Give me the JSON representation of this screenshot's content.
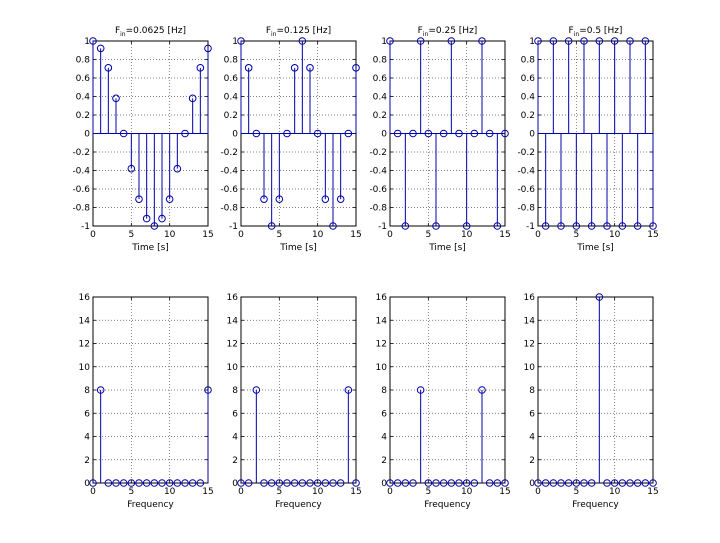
{
  "figure": {
    "stem_color": "#0000aa",
    "grid_color": "#555555",
    "axis_color": "#000000"
  },
  "chart_data": [
    {
      "type": "stem",
      "title": {
        "main": "F",
        "sub": "in",
        "rest": "=0.0625 [Hz]"
      },
      "xlabel": "Time [s]",
      "xlim": [
        0,
        15
      ],
      "ylim": [
        -1,
        1
      ],
      "xticks": [
        "0",
        "5",
        "10",
        "15"
      ],
      "yticks": [
        "-1",
        "-0.8",
        "-0.6",
        "-0.4",
        "-0.2",
        "0",
        "0.2",
        "0.4",
        "0.6",
        "0.8",
        "1"
      ],
      "grid": true,
      "x": [
        0,
        1,
        2,
        3,
        4,
        5,
        6,
        7,
        8,
        9,
        10,
        11,
        12,
        13,
        14,
        15
      ],
      "values": [
        1,
        0.92,
        0.71,
        0.38,
        0,
        -0.38,
        -0.71,
        -0.92,
        -1,
        -0.92,
        -0.71,
        -0.38,
        0,
        0.38,
        0.71,
        0.92
      ]
    },
    {
      "type": "stem",
      "title": {
        "main": "F",
        "sub": "in",
        "rest": "=0.125 [Hz]"
      },
      "xlabel": "Time [s]",
      "xlim": [
        0,
        15
      ],
      "ylim": [
        -1,
        1
      ],
      "xticks": [
        "0",
        "5",
        "10",
        "15"
      ],
      "yticks": [
        "-1",
        "-0.8",
        "-0.6",
        "-0.4",
        "-0.2",
        "0",
        "0.2",
        "0.4",
        "0.6",
        "0.8",
        "1"
      ],
      "grid": true,
      "x": [
        0,
        1,
        2,
        3,
        4,
        5,
        6,
        7,
        8,
        9,
        10,
        11,
        12,
        13,
        14,
        15
      ],
      "values": [
        1,
        0.71,
        0,
        -0.71,
        -1,
        -0.71,
        0,
        0.71,
        1,
        0.71,
        0,
        -0.71,
        -1,
        -0.71,
        0,
        0.71
      ]
    },
    {
      "type": "stem",
      "title": {
        "main": "F",
        "sub": "in",
        "rest": "=0.25 [Hz]"
      },
      "xlabel": "Time [s]",
      "xlim": [
        0,
        15
      ],
      "ylim": [
        -1,
        1
      ],
      "xticks": [
        "0",
        "5",
        "10",
        "15"
      ],
      "yticks": [
        "-1",
        "-0.8",
        "-0.6",
        "-0.4",
        "-0.2",
        "0",
        "0.2",
        "0.4",
        "0.6",
        "0.8",
        "1"
      ],
      "grid": true,
      "x": [
        0,
        1,
        2,
        3,
        4,
        5,
        6,
        7,
        8,
        9,
        10,
        11,
        12,
        13,
        14,
        15
      ],
      "values": [
        1,
        0,
        -1,
        0,
        1,
        0,
        -1,
        0,
        1,
        0,
        -1,
        0,
        1,
        0,
        -1,
        0
      ]
    },
    {
      "type": "stem",
      "title": {
        "main": "F",
        "sub": "in",
        "rest": "=0.5 [Hz]"
      },
      "xlabel": "Time [s]",
      "xlim": [
        0,
        15
      ],
      "ylim": [
        -1,
        1
      ],
      "xticks": [
        "0",
        "5",
        "10",
        "15"
      ],
      "yticks": [
        "-1",
        "-0.8",
        "-0.6",
        "-0.4",
        "-0.2",
        "0",
        "0.2",
        "0.4",
        "0.6",
        "0.8",
        "1"
      ],
      "grid": true,
      "x": [
        0,
        1,
        2,
        3,
        4,
        5,
        6,
        7,
        8,
        9,
        10,
        11,
        12,
        13,
        14,
        15
      ],
      "values": [
        1,
        -1,
        1,
        -1,
        1,
        -1,
        1,
        -1,
        1,
        -1,
        1,
        -1,
        1,
        -1,
        1,
        -1
      ]
    },
    {
      "type": "stem",
      "xlabel": "Frequency",
      "xlim": [
        0,
        15
      ],
      "ylim": [
        0,
        16
      ],
      "xticks": [
        "0",
        "5",
        "10",
        "15"
      ],
      "yticks": [
        "0",
        "2",
        "4",
        "6",
        "8",
        "10",
        "12",
        "14",
        "16"
      ],
      "grid": true,
      "x": [
        0,
        1,
        2,
        3,
        4,
        5,
        6,
        7,
        8,
        9,
        10,
        11,
        12,
        13,
        14,
        15
      ],
      "values": [
        0,
        8,
        0,
        0,
        0,
        0,
        0,
        0,
        0,
        0,
        0,
        0,
        0,
        0,
        0,
        8
      ]
    },
    {
      "type": "stem",
      "xlabel": "Frequency",
      "xlim": [
        0,
        15
      ],
      "ylim": [
        0,
        16
      ],
      "xticks": [
        "0",
        "5",
        "10",
        "15"
      ],
      "yticks": [
        "0",
        "2",
        "4",
        "6",
        "8",
        "10",
        "12",
        "14",
        "16"
      ],
      "grid": true,
      "x": [
        0,
        1,
        2,
        3,
        4,
        5,
        6,
        7,
        8,
        9,
        10,
        11,
        12,
        13,
        14,
        15
      ],
      "values": [
        0,
        0,
        8,
        0,
        0,
        0,
        0,
        0,
        0,
        0,
        0,
        0,
        0,
        0,
        8,
        0
      ]
    },
    {
      "type": "stem",
      "xlabel": "Frequency",
      "xlim": [
        0,
        15
      ],
      "ylim": [
        0,
        16
      ],
      "xticks": [
        "0",
        "5",
        "10",
        "15"
      ],
      "yticks": [
        "0",
        "2",
        "4",
        "6",
        "8",
        "10",
        "12",
        "14",
        "16"
      ],
      "grid": true,
      "x": [
        0,
        1,
        2,
        3,
        4,
        5,
        6,
        7,
        8,
        9,
        10,
        11,
        12,
        13,
        14,
        15
      ],
      "values": [
        0,
        0,
        0,
        0,
        8,
        0,
        0,
        0,
        0,
        0,
        0,
        0,
        8,
        0,
        0,
        0
      ]
    },
    {
      "type": "stem",
      "xlabel": "Frequency",
      "xlim": [
        0,
        15
      ],
      "ylim": [
        0,
        16
      ],
      "xticks": [
        "0",
        "5",
        "10",
        "15"
      ],
      "yticks": [
        "0",
        "2",
        "4",
        "6",
        "8",
        "10",
        "12",
        "14",
        "16"
      ],
      "grid": true,
      "x": [
        0,
        1,
        2,
        3,
        4,
        5,
        6,
        7,
        8,
        9,
        10,
        11,
        12,
        13,
        14,
        15
      ],
      "values": [
        0,
        0,
        0,
        0,
        0,
        0,
        0,
        0,
        16,
        0,
        0,
        0,
        0,
        0,
        0,
        0
      ]
    }
  ]
}
